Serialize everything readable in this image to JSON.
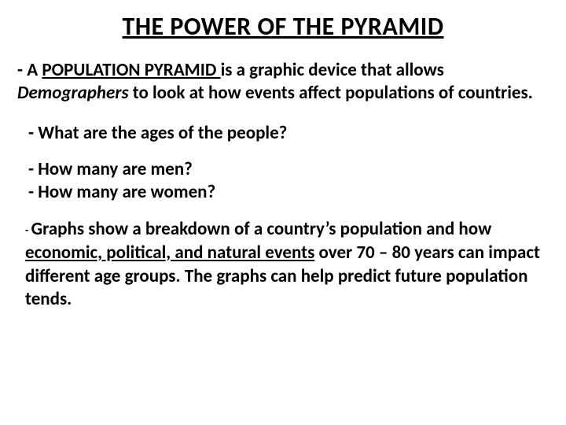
{
  "title": "THE POWER OF THE PYRAMID",
  "p1_dash": "- ",
  "p1_a": " A ",
  "p1_term": "POPULATION PYRAMID ",
  "p1_b": "is a graphic device that allows ",
  "p1_demo": "Demographers",
  "p1_c": " to look at how events affect populations of countries.",
  "q1": "-  What are the ages of the people?",
  "q2a": "-  How many are men?",
  "q2b": "- How many are women?",
  "p4_dash": "- ",
  "p4_a": "Graphs show a breakdown of a country",
  "p4_apos": "’",
  "p4_b": "s population and how ",
  "p4_u": "economic, political, and natural events",
  "p4_c": " over 70 – 80 years can impact different age groups.  The graphs can help predict future population tends.",
  "colors": {
    "text": "#000000",
    "background": "#ffffff"
  },
  "fonts": {
    "title_size_pt": 32,
    "body_size_pt": 23,
    "family": "Calibri"
  }
}
